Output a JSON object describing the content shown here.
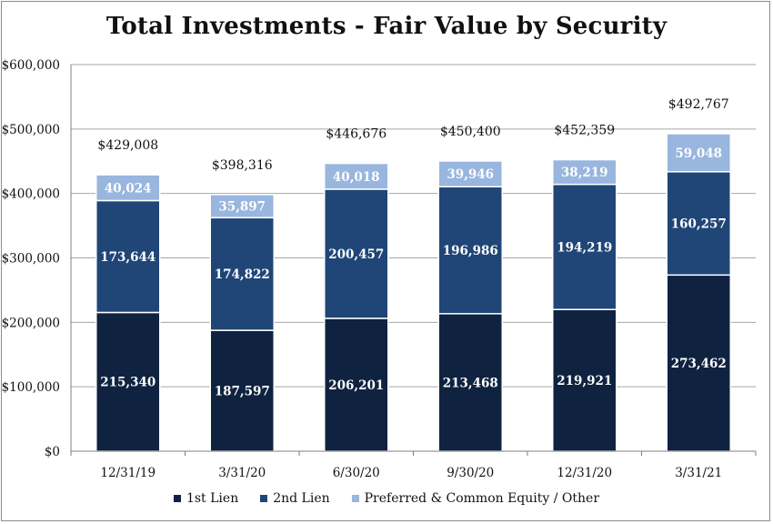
{
  "chart_data": {
    "type": "bar",
    "stacked": true,
    "title": "Total Investments - Fair Value  by Security",
    "categories": [
      "12/31/19",
      "3/31/20",
      "6/30/20",
      "9/30/20",
      "12/31/20",
      "3/31/21"
    ],
    "series": [
      {
        "name": "1st Lien",
        "color": "#0f2240",
        "values": [
          215340,
          187597,
          206201,
          213468,
          219921,
          273462
        ],
        "labels": [
          "215,340",
          "187,597",
          "206,201",
          "213,468",
          "219,921",
          "273,462"
        ]
      },
      {
        "name": "2nd Lien",
        "color": "#1f4677",
        "values": [
          173644,
          174822,
          200457,
          196986,
          194219,
          160257
        ],
        "labels": [
          "173,644",
          "174,822",
          "200,457",
          "196,986",
          "194,219",
          "160,257"
        ]
      },
      {
        "name": "Preferred & Common Equity / Other",
        "color": "#98b6de",
        "values": [
          40024,
          35897,
          40018,
          39946,
          38219,
          59048
        ],
        "labels": [
          "40,024",
          "35,897",
          "40,018",
          "39,946",
          "38,219",
          "59,048"
        ]
      }
    ],
    "totals": [
      429008,
      398316,
      446676,
      450400,
      452359,
      492767
    ],
    "total_labels": [
      "$429,008",
      "$398,316",
      "$446,676",
      "$450,400",
      "$452,359",
      "$492,767"
    ],
    "ylim": [
      0,
      600000
    ],
    "y_ticks": [
      0,
      100000,
      200000,
      300000,
      400000,
      500000,
      600000
    ],
    "y_tick_labels": [
      "$0",
      "$100,000",
      "$200,000",
      "$300,000",
      "$400,000",
      "$500,000",
      "$600,000"
    ],
    "grid": true,
    "legend_position": "bottom"
  }
}
